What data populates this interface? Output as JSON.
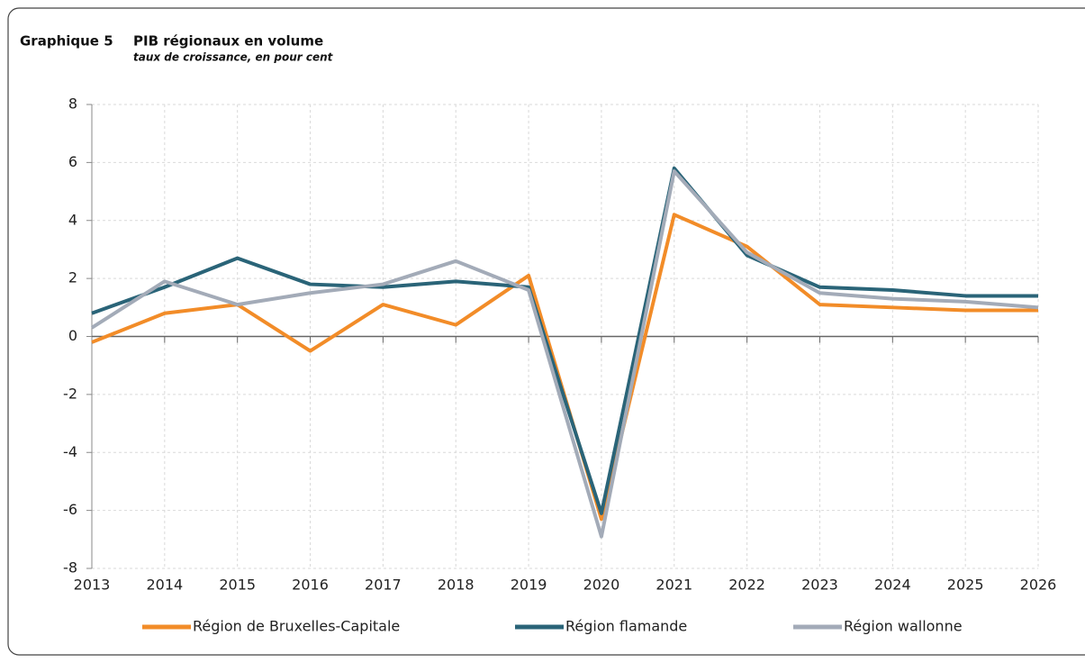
{
  "chart_data": {
    "type": "line",
    "figure_label": "Graphique 5",
    "title": "PIB régionaux en volume",
    "subtitle": "taux de croissance, en pour cent",
    "x": [
      2013,
      2014,
      2015,
      2016,
      2017,
      2018,
      2019,
      2020,
      2021,
      2022,
      2023,
      2024,
      2025,
      2026
    ],
    "xlim": [
      2013,
      2026
    ],
    "xticks": [
      2013,
      2014,
      2015,
      2016,
      2017,
      2018,
      2019,
      2020,
      2021,
      2022,
      2023,
      2024,
      2025,
      2026
    ],
    "ylim": [
      -8,
      8
    ],
    "yticks": [
      -8,
      -6,
      -4,
      -2,
      0,
      2,
      4,
      6,
      8
    ],
    "grid": true,
    "legend": "bottom",
    "series": [
      {
        "name": "Région de Bruxelles-Capitale",
        "color": "#f28c28",
        "values": [
          -0.2,
          0.8,
          1.1,
          -0.5,
          1.1,
          0.4,
          2.1,
          -6.3,
          4.2,
          3.1,
          1.1,
          1.0,
          0.9,
          0.9
        ]
      },
      {
        "name": "Région flamande",
        "color": "#2a6478",
        "values": [
          0.8,
          1.7,
          2.7,
          1.8,
          1.7,
          1.9,
          1.7,
          -6.1,
          5.8,
          2.8,
          1.7,
          1.6,
          1.4,
          1.4
        ]
      },
      {
        "name": "Région wallonne",
        "color": "#a3abb8",
        "values": [
          0.3,
          1.9,
          1.1,
          1.5,
          1.8,
          2.6,
          1.6,
          -6.9,
          5.7,
          2.9,
          1.5,
          1.3,
          1.2,
          1.0
        ]
      }
    ]
  }
}
